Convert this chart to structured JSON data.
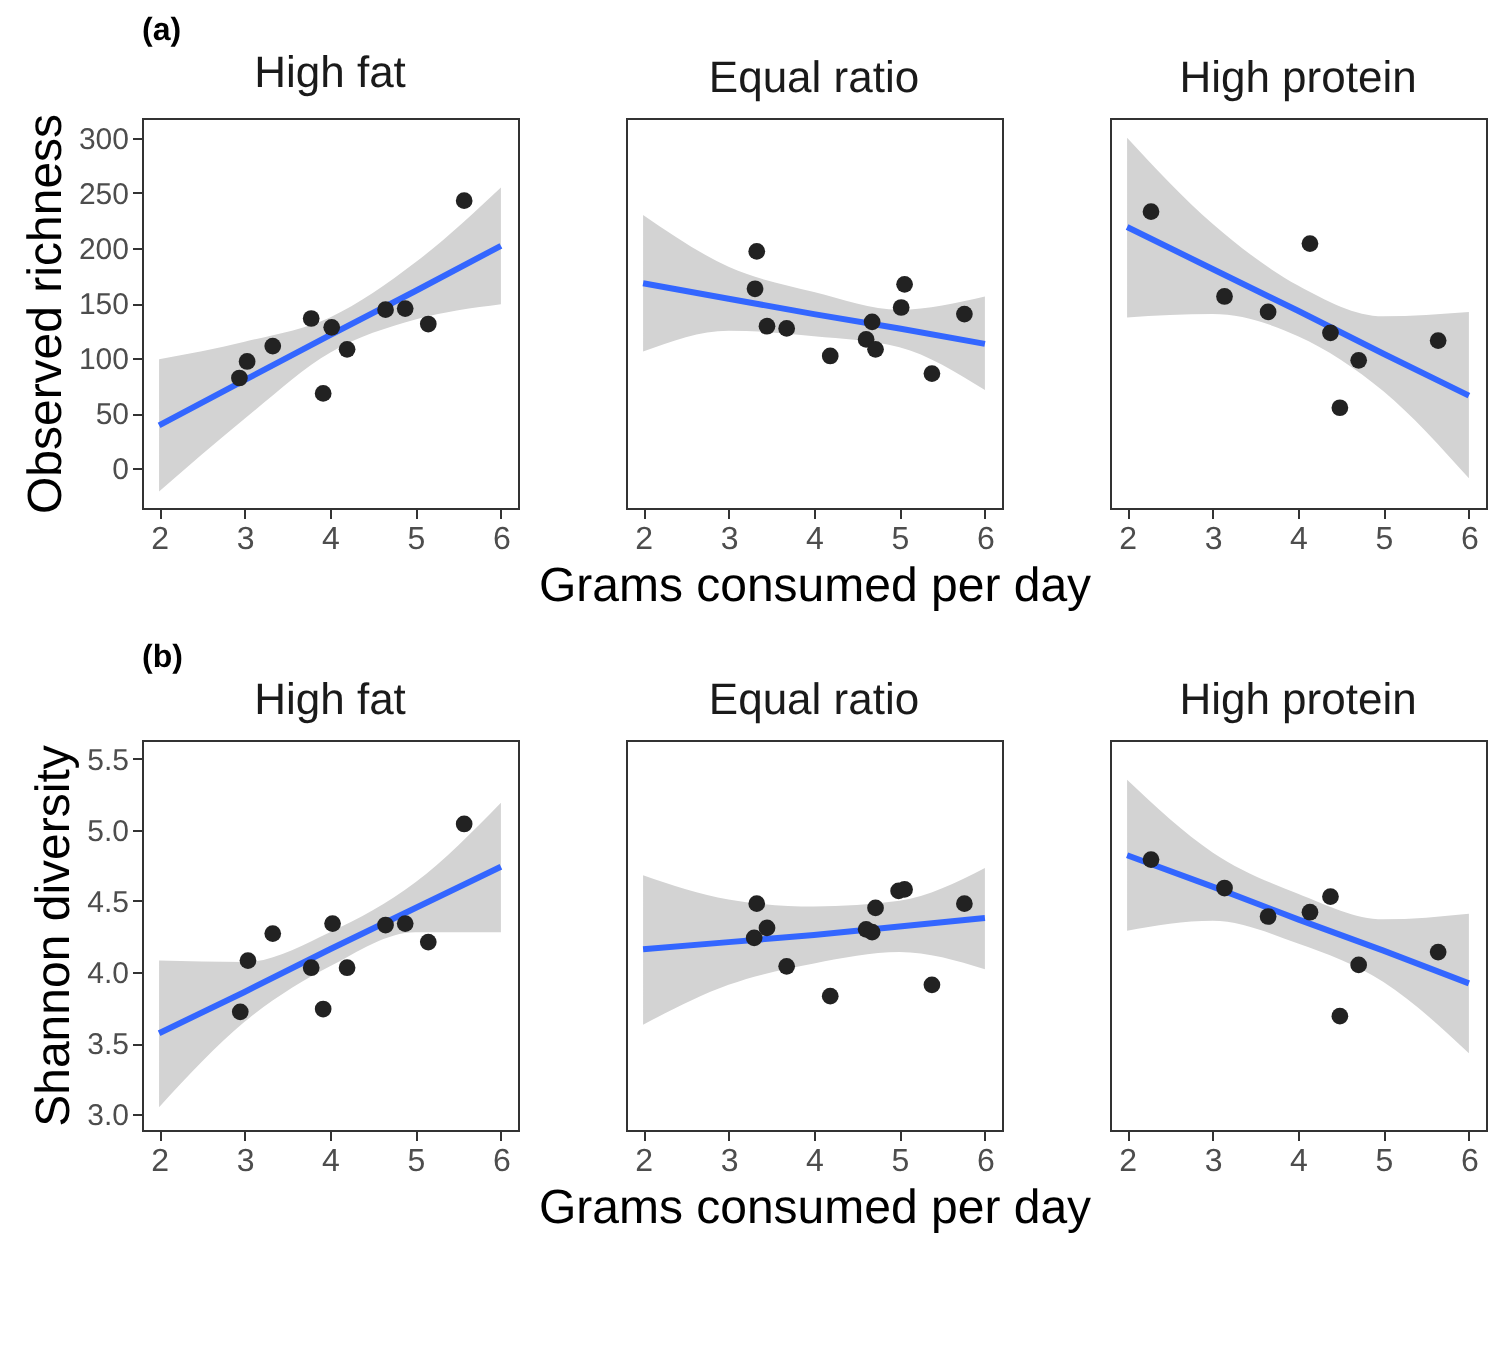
{
  "chart_data": [
    {
      "type": "scatter",
      "title": "High fat",
      "ylabel": "Observed richness",
      "annotations": [
        "(a)"
      ],
      "xlim": [
        1.8,
        6.2
      ],
      "ylim": [
        -36,
        318
      ],
      "xticks": [
        2,
        3,
        4,
        5,
        6
      ],
      "yticks": [
        0,
        50,
        100,
        150,
        200,
        250,
        300
      ],
      "series": [
        {
          "type": "scatter",
          "marker": "circle",
          "color": "#222222",
          "x": [
            2.94,
            3.03,
            3.33,
            3.78,
            3.92,
            4.02,
            4.2,
            4.65,
            4.88,
            5.15,
            5.57
          ],
          "values": [
            82,
            97,
            111,
            136,
            68,
            128,
            108,
            144,
            145,
            131,
            243
          ]
        },
        {
          "type": "line",
          "color": "#3366ff",
          "x": [
            2,
            3,
            4,
            5,
            6
          ],
          "values": [
            39,
            80,
            121,
            161,
            202
          ],
          "lower": [
            -21,
            45,
            105,
            135,
            149
          ],
          "upper": [
            99,
            115,
            137,
            187,
            255
          ]
        }
      ]
    },
    {
      "type": "scatter",
      "title": "Equal ratio",
      "xlabel": "Grams consumed per day",
      "tick_labels": "x",
      "xlim": [
        1.8,
        6.2
      ],
      "ylim": [
        -36,
        318
      ],
      "xticks": [
        2,
        3,
        4,
        5,
        6
      ],
      "series": [
        {
          "type": "scatter",
          "marker": "circle",
          "color": "#222222",
          "x": [
            3.33,
            3.31,
            3.45,
            3.68,
            4.19,
            4.61,
            4.68,
            4.72,
            5.02,
            5.06,
            5.38,
            5.76
          ],
          "values": [
            197,
            163,
            129,
            127,
            102,
            117,
            133,
            108,
            146,
            167,
            86,
            140
          ]
        },
        {
          "type": "line",
          "color": "#3366ff",
          "x": [
            2,
            3,
            4,
            5,
            6
          ],
          "values": [
            168,
            154,
            140,
            127,
            113
          ],
          "lower": [
            106,
            125,
            120,
            110,
            71
          ],
          "upper": [
            230,
            183,
            160,
            144,
            156
          ]
        }
      ]
    },
    {
      "type": "scatter",
      "title": "High protein",
      "tick_labels": "x",
      "xlim": [
        1.8,
        6.2
      ],
      "ylim": [
        -36,
        318
      ],
      "xticks": [
        2,
        3,
        4,
        5,
        6
      ],
      "series": [
        {
          "type": "scatter",
          "marker": "circle",
          "color": "#222222",
          "x": [
            2.28,
            3.14,
            3.65,
            4.14,
            4.38,
            4.49,
            4.71,
            5.64
          ],
          "values": [
            233,
            156,
            142,
            204,
            123,
            55,
            98,
            116
          ]
        },
        {
          "type": "line",
          "color": "#3366ff",
          "x": [
            2,
            3,
            4,
            5,
            6
          ],
          "values": [
            219,
            181,
            143,
            104,
            66
          ],
          "lower": [
            137,
            140,
            120,
            70,
            -9
          ],
          "upper": [
            300,
            222,
            166,
            138,
            142
          ]
        }
      ]
    },
    {
      "type": "scatter",
      "title": "High fat",
      "ylabel": "Shannon diversity",
      "annotations": [
        "(b)"
      ],
      "xlim": [
        1.8,
        6.2
      ],
      "ylim": [
        2.89,
        5.63
      ],
      "xticks": [
        2,
        3,
        4,
        5,
        6
      ],
      "yticks": [
        {
          "value": 3,
          "label": "3.0"
        },
        3.5,
        {
          "value": 4,
          "label": "4.0"
        },
        4.5,
        {
          "value": 5,
          "label": "5.0"
        },
        5.5
      ],
      "series": [
        {
          "type": "scatter",
          "marker": "circle",
          "color": "#222222",
          "x": [
            2.95,
            3.04,
            3.33,
            3.78,
            3.92,
            4.03,
            4.2,
            4.65,
            4.88,
            5.15,
            5.57
          ],
          "values": [
            3.72,
            4.08,
            4.27,
            4.03,
            3.74,
            4.34,
            4.03,
            4.33,
            4.34,
            4.21,
            5.04
          ]
        },
        {
          "type": "line",
          "color": "#3366ff",
          "x": [
            2,
            3,
            4,
            5,
            6
          ],
          "values": [
            3.57,
            3.86,
            4.16,
            4.45,
            4.74
          ],
          "lower": [
            3.05,
            3.65,
            4.04,
            4.28,
            4.28
          ],
          "upper": [
            4.08,
            4.07,
            4.28,
            4.63,
            5.19
          ]
        }
      ]
    },
    {
      "type": "scatter",
      "title": "Equal ratio",
      "xlabel": "Grams consumed per day",
      "tick_labels": "x",
      "xlim": [
        1.8,
        6.2
      ],
      "ylim": [
        2.89,
        5.63
      ],
      "xticks": [
        2,
        3,
        4,
        5,
        6
      ],
      "series": [
        {
          "type": "scatter",
          "marker": "circle",
          "color": "#222222",
          "x": [
            3.33,
            3.3,
            3.45,
            3.68,
            4.19,
            4.61,
            4.68,
            4.72,
            4.99,
            5.06,
            5.38,
            5.76
          ],
          "values": [
            4.48,
            4.24,
            4.31,
            4.04,
            3.83,
            4.3,
            4.28,
            4.45,
            4.57,
            4.58,
            3.91,
            4.48
          ]
        },
        {
          "type": "line",
          "color": "#3366ff",
          "x": [
            2,
            3,
            4,
            5,
            6
          ],
          "values": [
            4.16,
            4.21,
            4.26,
            4.32,
            4.38
          ],
          "lower": [
            3.63,
            3.91,
            4.06,
            4.14,
            4.02
          ],
          "upper": [
            4.68,
            4.51,
            4.46,
            4.5,
            4.73
          ]
        }
      ]
    },
    {
      "type": "scatter",
      "title": "High protein",
      "tick_labels": "x",
      "xlim": [
        1.8,
        6.2
      ],
      "ylim": [
        2.89,
        5.63
      ],
      "xticks": [
        2,
        3,
        4,
        5,
        6
      ],
      "series": [
        {
          "type": "scatter",
          "marker": "circle",
          "color": "#222222",
          "x": [
            2.28,
            3.14,
            3.65,
            4.14,
            4.38,
            4.49,
            4.71,
            5.64
          ],
          "values": [
            4.79,
            4.59,
            4.39,
            4.42,
            4.53,
            3.69,
            4.05,
            4.14
          ]
        },
        {
          "type": "line",
          "color": "#3366ff",
          "x": [
            2,
            3,
            4,
            5,
            6
          ],
          "values": [
            4.82,
            4.6,
            4.37,
            4.15,
            3.92
          ],
          "lower": [
            4.29,
            4.36,
            4.2,
            3.93,
            3.43
          ],
          "upper": [
            5.35,
            4.84,
            4.55,
            4.37,
            4.41
          ]
        }
      ]
    }
  ]
}
